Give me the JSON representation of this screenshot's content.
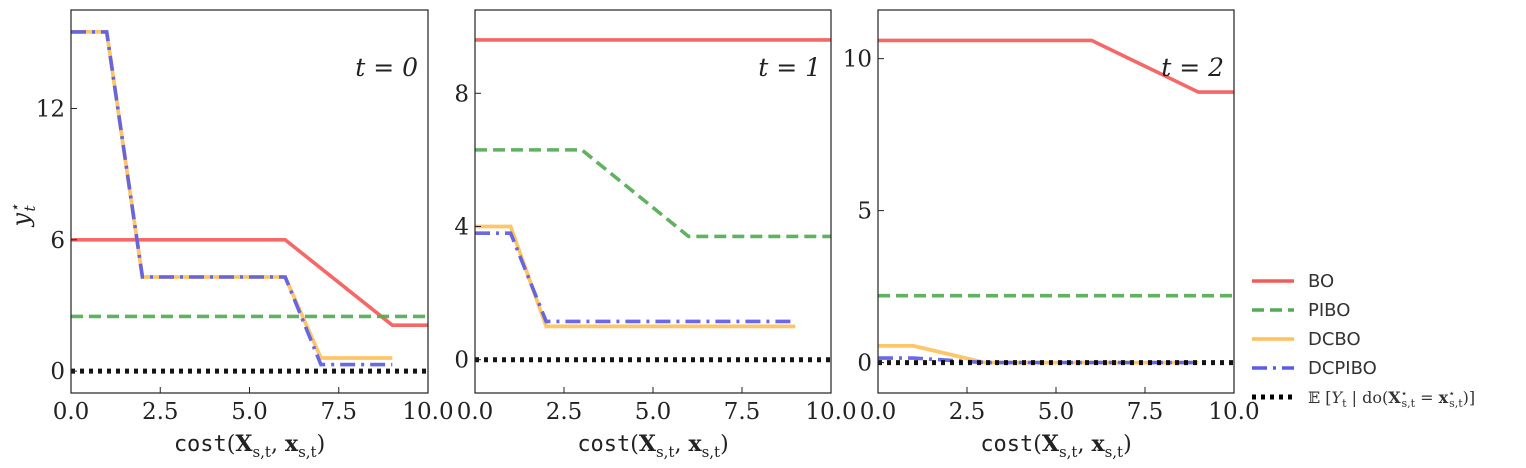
{
  "chart_data": [
    {
      "type": "line",
      "time_label": "t = 0",
      "xlabel": "cost(X_{s,t}, x_{s,t})",
      "ylabel": "y_t*",
      "xlim": [
        0,
        10
      ],
      "ylim": [
        -1,
        16.5
      ],
      "xticks": [
        0,
        2.5,
        5,
        7.5,
        10
      ],
      "xtick_labels": [
        "0.0",
        "2.5",
        "5.0",
        "7.5",
        "10.0"
      ],
      "yticks": [
        0,
        6,
        12
      ],
      "ytick_labels": [
        "0",
        "6",
        "12"
      ],
      "series": [
        {
          "name": "BO",
          "x": [
            0,
            6,
            9,
            10
          ],
          "y": [
            6.0,
            6.0,
            2.1,
            2.1
          ]
        },
        {
          "name": "PIBO",
          "x": [
            0,
            10
          ],
          "y": [
            2.5,
            2.5
          ]
        },
        {
          "name": "DCBO",
          "x": [
            0,
            1,
            2,
            6,
            7,
            9
          ],
          "y": [
            15.5,
            15.5,
            4.3,
            4.3,
            0.6,
            0.6
          ]
        },
        {
          "name": "DCPIBO",
          "x": [
            0,
            1,
            2,
            6,
            7,
            9
          ],
          "y": [
            15.5,
            15.5,
            4.3,
            4.3,
            0.3,
            0.3
          ]
        },
        {
          "name": "E[Y_t | do(X*_{s,t} = x*_{s,t})]",
          "x": [
            0,
            10
          ],
          "y": [
            0.0,
            0.0
          ]
        }
      ]
    },
    {
      "type": "line",
      "time_label": "t = 1",
      "xlabel": "cost(X_{s,t}, x_{s,t})",
      "ylabel": "",
      "xlim": [
        0,
        10
      ],
      "ylim": [
        -1,
        10.5
      ],
      "xticks": [
        0,
        2.5,
        5,
        7.5,
        10
      ],
      "xtick_labels": [
        "0.0",
        "2.5",
        "5.0",
        "7.5",
        "10.0"
      ],
      "yticks": [
        0,
        4,
        8
      ],
      "ytick_labels": [
        "0",
        "4",
        "8"
      ],
      "series": [
        {
          "name": "BO",
          "x": [
            0,
            10
          ],
          "y": [
            9.6,
            9.6
          ]
        },
        {
          "name": "PIBO",
          "x": [
            0,
            3,
            6,
            10
          ],
          "y": [
            6.3,
            6.3,
            3.7,
            3.7
          ]
        },
        {
          "name": "DCBO",
          "x": [
            0,
            1,
            2,
            9
          ],
          "y": [
            4.0,
            4.0,
            1.0,
            1.0
          ]
        },
        {
          "name": "DCPIBO",
          "x": [
            0,
            1,
            2,
            9
          ],
          "y": [
            3.8,
            3.8,
            1.15,
            1.15
          ]
        },
        {
          "name": "E[Y_t | do(X*_{s,t} = x*_{s,t})]",
          "x": [
            0,
            10
          ],
          "y": [
            0.0,
            0.0
          ]
        }
      ]
    },
    {
      "type": "line",
      "time_label": "t = 2",
      "xlabel": "cost(X_{s,t}, x_{s,t})",
      "ylabel": "",
      "xlim": [
        0,
        10
      ],
      "ylim": [
        -1,
        11.6
      ],
      "xticks": [
        0,
        2.5,
        5,
        7.5,
        10
      ],
      "xtick_labels": [
        "0.0",
        "2.5",
        "5.0",
        "7.5",
        "10.0"
      ],
      "yticks": [
        0,
        5,
        10
      ],
      "ytick_labels": [
        "0",
        "5",
        "10"
      ],
      "series": [
        {
          "name": "BO",
          "x": [
            0,
            6,
            9,
            10
          ],
          "y": [
            10.6,
            10.6,
            8.9,
            8.9
          ]
        },
        {
          "name": "PIBO",
          "x": [
            0,
            10
          ],
          "y": [
            2.2,
            2.2
          ]
        },
        {
          "name": "DCBO",
          "x": [
            0,
            1,
            3,
            9
          ],
          "y": [
            0.55,
            0.55,
            0.0,
            0.0
          ]
        },
        {
          "name": "DCPIBO",
          "x": [
            0,
            1,
            3,
            9
          ],
          "y": [
            0.15,
            0.15,
            0.0,
            0.0
          ]
        },
        {
          "name": "E[Y_t | do(X*_{s,t} = x*_{s,t})]",
          "x": [
            0,
            10
          ],
          "y": [
            0.0,
            0.0
          ]
        }
      ]
    }
  ],
  "legend": {
    "placement": "right",
    "entries": [
      {
        "label": "BO",
        "color": "#f55a5a",
        "style": "solid"
      },
      {
        "label": "PIBO",
        "color": "#55aa55",
        "style": "dashed"
      },
      {
        "label": "DCBO",
        "color": "#ffc15c",
        "style": "solid"
      },
      {
        "label": "DCPIBO",
        "color": "#5b5be6",
        "style": "dashdot"
      },
      {
        "label": "E[Y_t | do(X*_{s,t} = x*_{s,t})]",
        "color": "#000000",
        "style": "dotted"
      }
    ]
  },
  "style": {
    "colors": {
      "BO": "#f55a5a",
      "PIBO": "#55aa55",
      "DCBO": "#ffc15c",
      "DCPIBO": "#5b5be6",
      "truth": "#000000"
    }
  }
}
